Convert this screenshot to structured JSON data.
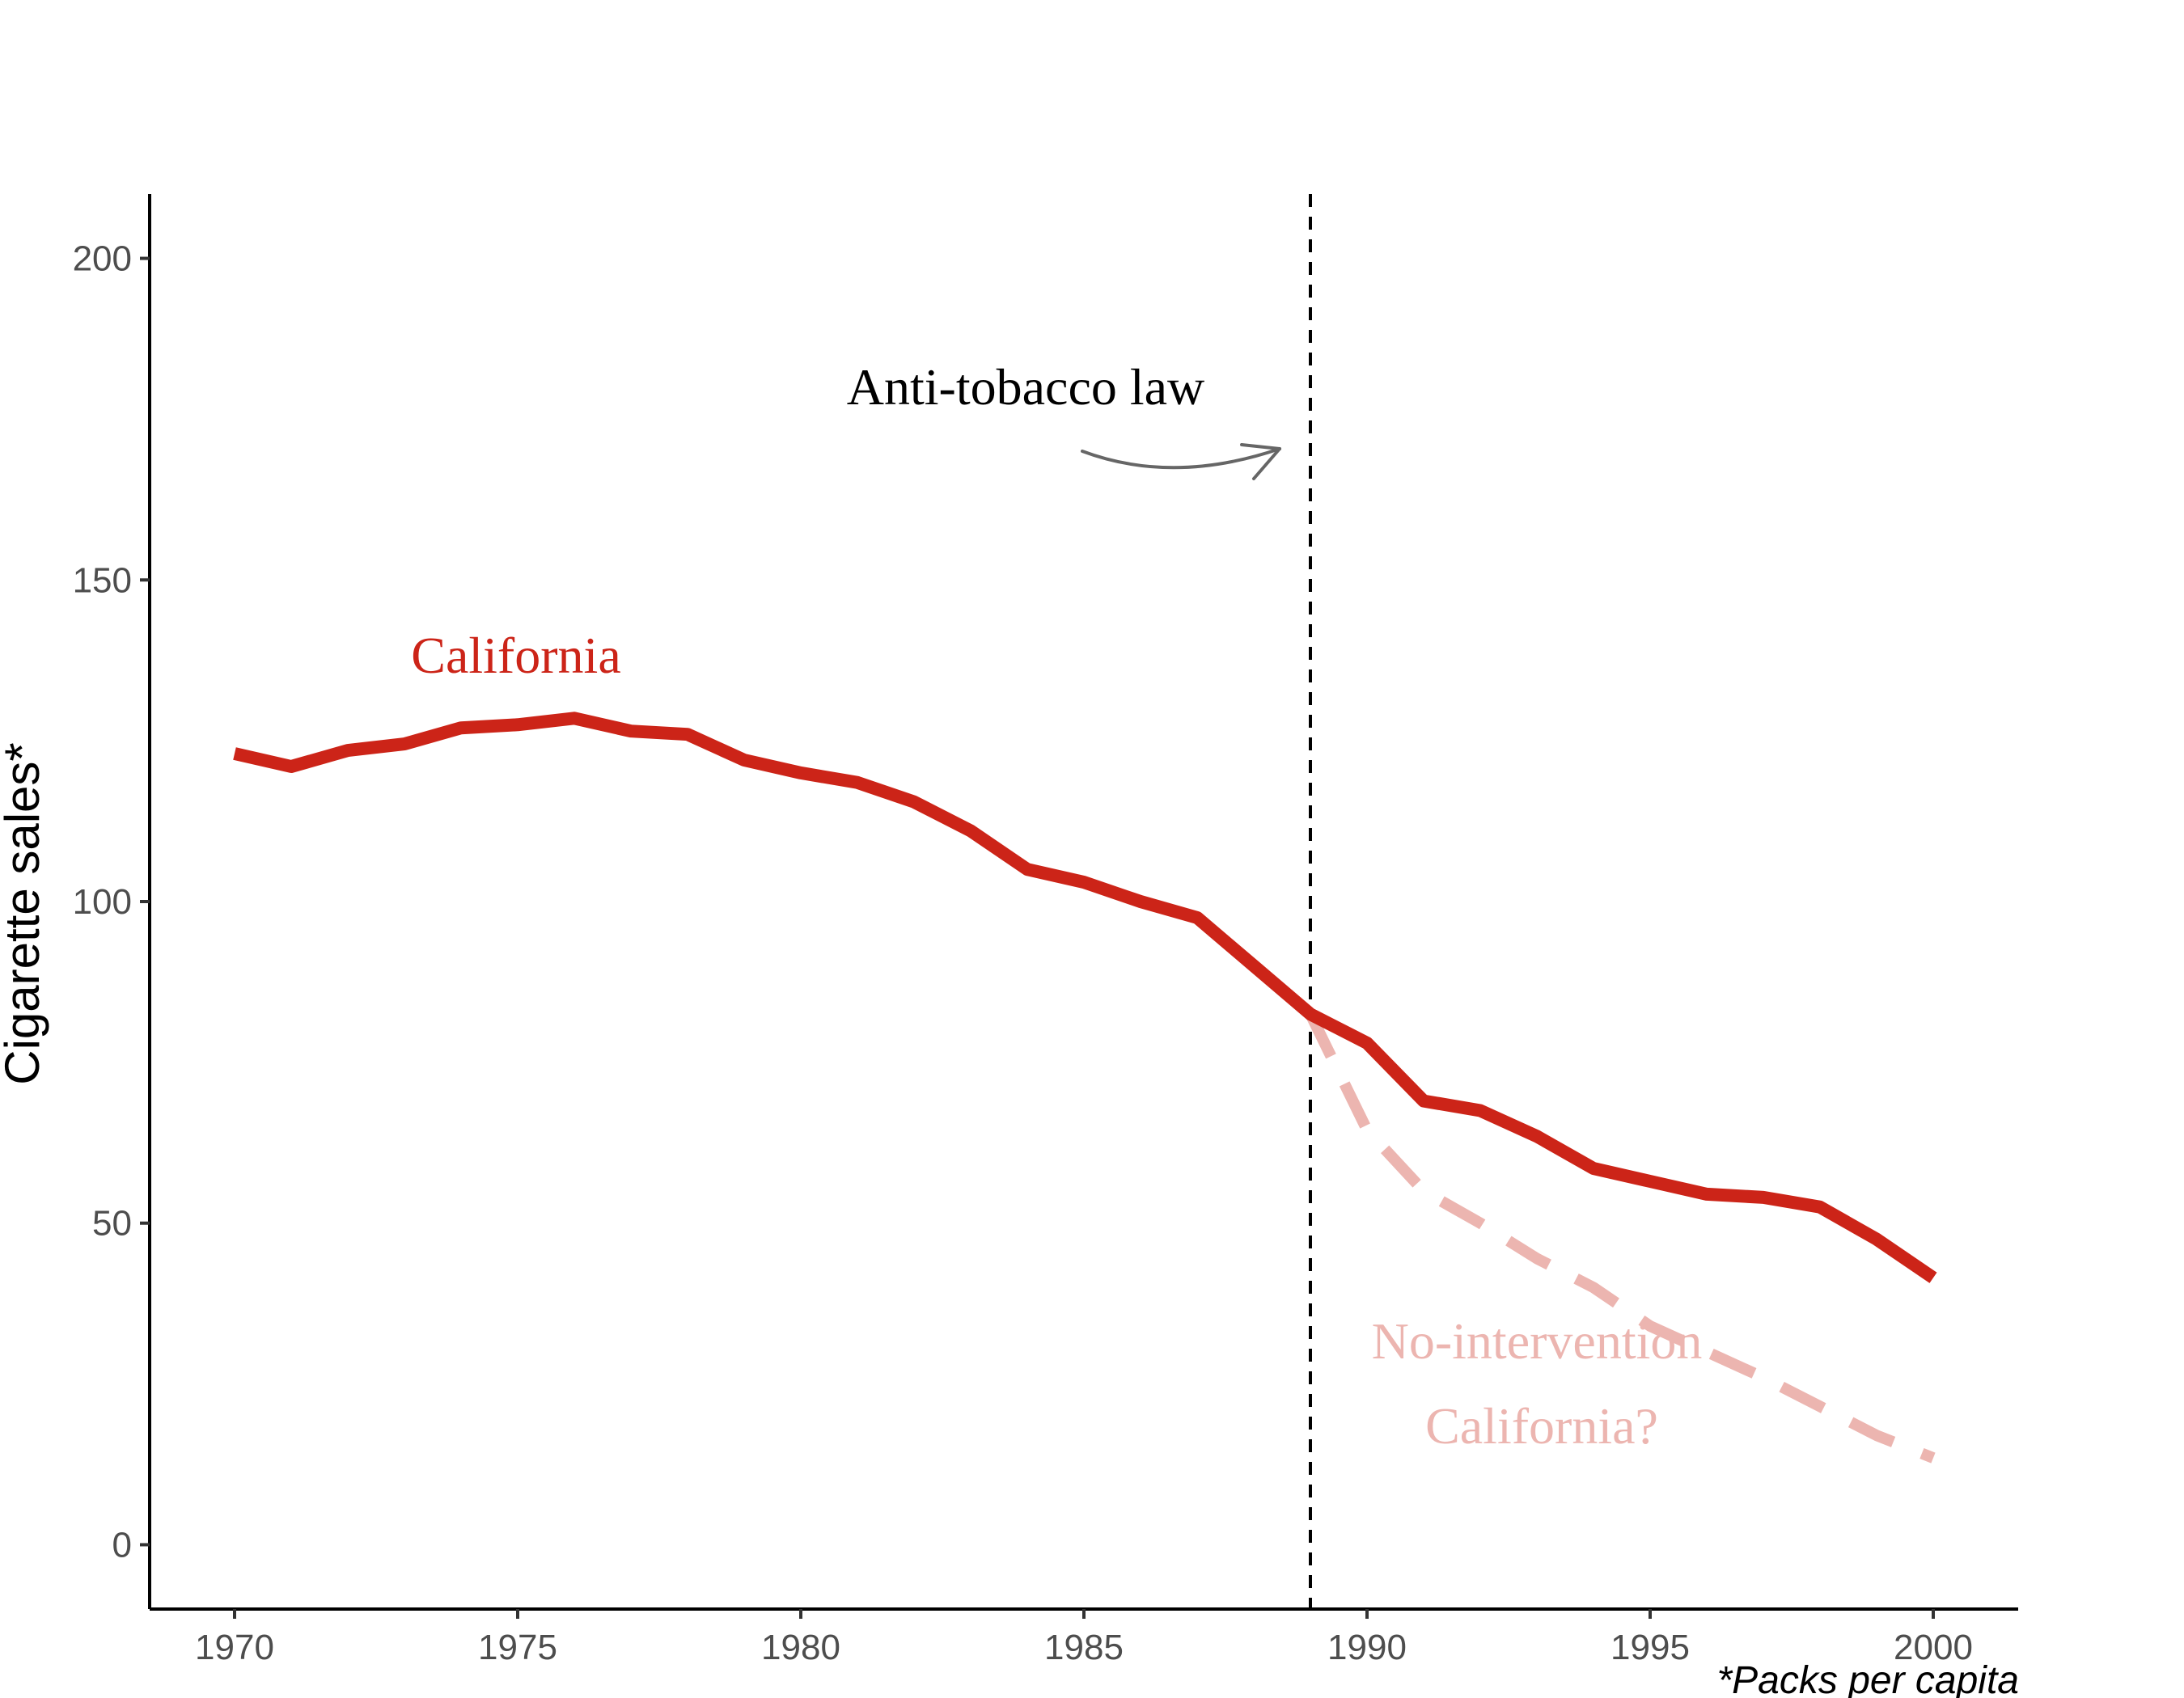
{
  "chart_data": {
    "type": "line",
    "ylabel": "Cigarette sales*",
    "xlabel": "",
    "caption": "*Packs per capita",
    "xlim": [
      1968.5,
      2001.5
    ],
    "ylim": [
      -10,
      210
    ],
    "x_ticks": [
      1970,
      1975,
      1980,
      1985,
      1990,
      1995,
      2000
    ],
    "y_ticks": [
      0,
      50,
      100,
      150,
      200
    ],
    "grid": false,
    "legend": "none",
    "intervention": {
      "x": 1989,
      "label": "Anti-tobacco law"
    },
    "series": [
      {
        "name": "California",
        "label": "California",
        "style": "solid",
        "color": "#cc2418",
        "x": [
          1970,
          1971,
          1972,
          1973,
          1974,
          1975,
          1976,
          1977,
          1978,
          1979,
          1980,
          1981,
          1982,
          1983,
          1984,
          1985,
          1986,
          1987,
          1988,
          1989,
          1990,
          1991,
          1992,
          1993,
          1994,
          1995,
          1996,
          1997,
          1998,
          1999,
          2000
        ],
        "values": [
          123,
          121,
          123.5,
          124.5,
          127,
          127.5,
          128.5,
          126.5,
          126,
          122,
          120,
          118.5,
          115.5,
          111,
          105,
          103,
          100,
          97.5,
          90,
          82.5,
          78,
          69,
          67.5,
          63.5,
          58.5,
          56.5,
          54.5,
          54,
          52.5,
          47.5,
          41.5
        ]
      },
      {
        "name": "No-intervention California?",
        "label_line1": "No-intervention",
        "label_line2": "California?",
        "style": "dashed",
        "color": "#ecb5b0",
        "x": [
          1989,
          1990,
          1991,
          1992,
          1993,
          1994,
          1995,
          1996,
          1997,
          1998,
          1999,
          2000
        ],
        "values": [
          82.5,
          64.5,
          55,
          50,
          44.5,
          40,
          34,
          30,
          26,
          21.5,
          17,
          13.5
        ]
      }
    ]
  }
}
